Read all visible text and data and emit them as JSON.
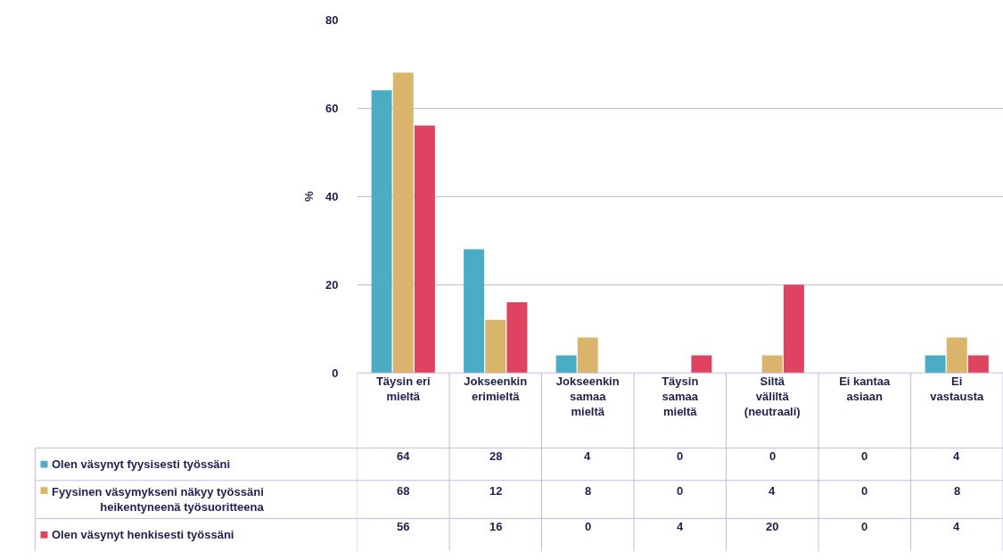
{
  "chart_data": {
    "type": "bar",
    "ylabel": "%",
    "categories": [
      "Täysin eri mieltä",
      "Jokseenkin erimieltä",
      "Jokseenkin samaa mieltä",
      "Täysin samaa mieltä",
      "Siltä väliltä (neutraali)",
      "Ei kantaa asiaan",
      "Ei vastausta"
    ],
    "series": [
      {
        "name": "Olen väsynyt fyysisesti työssäni",
        "color": "#4bacc6",
        "values": [
          64,
          28,
          4,
          0,
          0,
          0,
          4
        ]
      },
      {
        "name": "Fyysinen väsymykseni näkyy työssäni heikentyneenä työsuoritteena",
        "color": "#d9b46a",
        "values": [
          68,
          12,
          8,
          0,
          4,
          0,
          8
        ]
      },
      {
        "name": "Olen väsynyt henkisesti työssäni",
        "color": "#e0435f",
        "values": [
          56,
          16,
          0,
          4,
          20,
          0,
          4
        ]
      }
    ],
    "ylim": [
      0,
      80
    ],
    "yticks": [
      0,
      20,
      40,
      60,
      80
    ],
    "grid": "y",
    "legend": "bottom",
    "data_labels": true
  }
}
